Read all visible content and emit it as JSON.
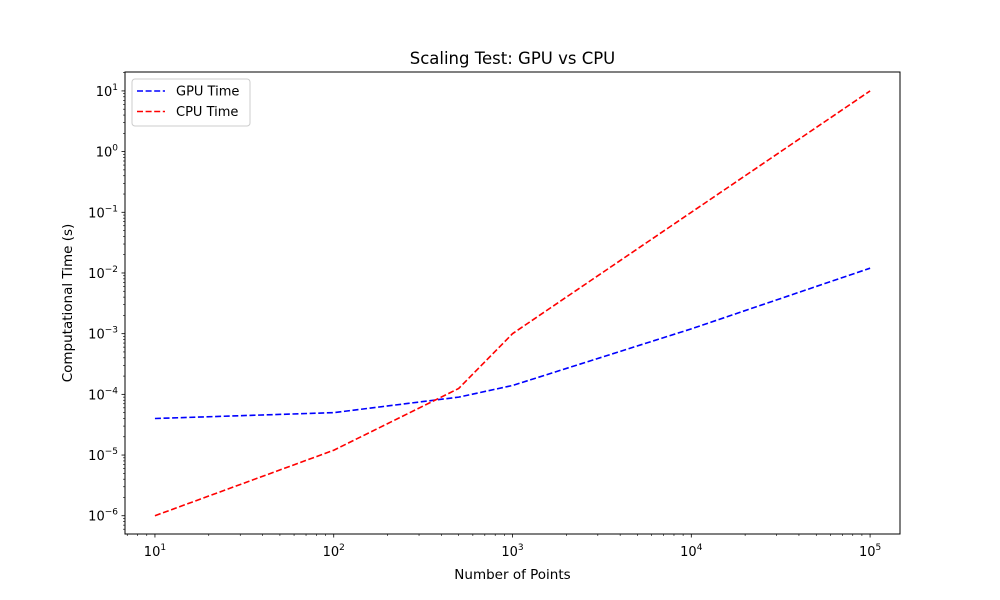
{
  "chart_data": {
    "type": "line",
    "title": "Scaling Test: GPU vs CPU",
    "xlabel": "Number of Points",
    "ylabel": "Computational Time (s)",
    "xscale": "log",
    "yscale": "log",
    "xlim": [
      6.8,
      147000
    ],
    "ylim": [
      5e-07,
      20.5
    ],
    "grid": false,
    "legend_position": "upper-left",
    "x": [
      10,
      100,
      500,
      1000,
      10000,
      100000
    ],
    "series": [
      {
        "name": "GPU Time",
        "color": "#0000ff",
        "linestyle": "dashed",
        "values": [
          4e-05,
          5e-05,
          9e-05,
          0.00014,
          0.0012,
          0.012
        ]
      },
      {
        "name": "CPU Time",
        "color": "#ff0000",
        "linestyle": "dashed",
        "values": [
          1e-06,
          1.2e-05,
          0.000125,
          0.001,
          0.1,
          10
        ]
      }
    ],
    "xticks": [
      {
        "value": 10,
        "base": "10",
        "exp": "1"
      },
      {
        "value": 100,
        "base": "10",
        "exp": "2"
      },
      {
        "value": 1000,
        "base": "10",
        "exp": "3"
      },
      {
        "value": 10000,
        "base": "10",
        "exp": "4"
      },
      {
        "value": 100000,
        "base": "10",
        "exp": "5"
      }
    ],
    "yticks": [
      {
        "value": 1e-06,
        "base": "10",
        "exp": "−6"
      },
      {
        "value": 1e-05,
        "base": "10",
        "exp": "−5"
      },
      {
        "value": 0.0001,
        "base": "10",
        "exp": "−4"
      },
      {
        "value": 0.001,
        "base": "10",
        "exp": "−3"
      },
      {
        "value": 0.01,
        "base": "10",
        "exp": "−2"
      },
      {
        "value": 0.1,
        "base": "10",
        "exp": "−1"
      },
      {
        "value": 1,
        "base": "10",
        "exp": "0"
      },
      {
        "value": 10,
        "base": "10",
        "exp": "1"
      }
    ]
  }
}
